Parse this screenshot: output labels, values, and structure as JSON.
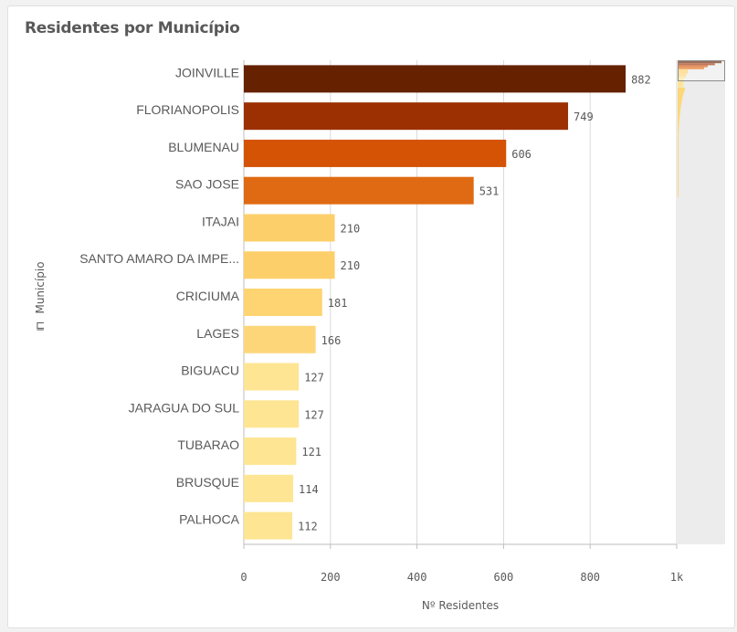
{
  "chart_data": {
    "type": "bar",
    "orientation": "horizontal",
    "title": "Residentes por Município",
    "xlabel": "Nº Residentes",
    "ylabel": "Município",
    "categories": [
      "JOINVILLE",
      "FLORIANOPOLIS",
      "BLUMENAU",
      "SAO JOSE",
      "ITAJAI",
      "SANTO AMARO DA IMPE...",
      "CRICIUMA",
      "LAGES",
      "BIGUACU",
      "JARAGUA DO SUL",
      "TUBARAO",
      "BRUSQUE",
      "PALHOCA"
    ],
    "values": [
      882,
      749,
      606,
      531,
      210,
      210,
      181,
      166,
      127,
      127,
      121,
      114,
      112
    ],
    "bar_colors": [
      "#652100",
      "#9c3002",
      "#d55305",
      "#e06a13",
      "#fccf6a",
      "#fccf6a",
      "#fdd471",
      "#fdd67a",
      "#fee593",
      "#fee593",
      "#fee593",
      "#fee593",
      "#fee593"
    ],
    "xlim": [
      0,
      1000
    ],
    "x_ticks": [
      "0",
      "200",
      "400",
      "600",
      "800",
      "1k"
    ],
    "x_tick_values": [
      0,
      200,
      400,
      600,
      800,
      1000
    ],
    "grid": true,
    "legend": "none",
    "has_minimap": true
  }
}
